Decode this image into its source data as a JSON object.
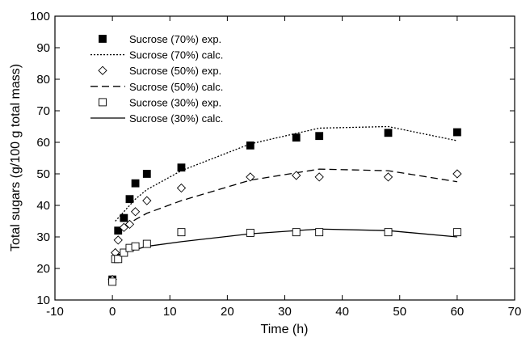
{
  "chart_data": {
    "type": "scatter",
    "title": "",
    "xlabel": "Time (h)",
    "ylabel": "Total sugars (g/100 g total mass)",
    "xlim": [
      -10,
      70
    ],
    "ylim": [
      10,
      100
    ],
    "xticks": [
      "-10",
      "0",
      "10",
      "20",
      "30",
      "40",
      "50",
      "60",
      "70"
    ],
    "yticks": [
      "10",
      "20",
      "30",
      "40",
      "50",
      "60",
      "70",
      "80",
      "90",
      "100"
    ],
    "grid": false,
    "legend_position": "top-left",
    "series": [
      {
        "name": "Sucrose (70%) exp.",
        "kind": "marker",
        "marker": "filled-square",
        "x": [
          0,
          1,
          2,
          3,
          4,
          6,
          12,
          24,
          32,
          36,
          48,
          60
        ],
        "y": [
          16.5,
          32,
          36,
          42,
          47,
          50,
          52,
          59,
          61.5,
          62,
          63,
          63.2
        ]
      },
      {
        "name": "Sucrose (70%) calc.",
        "kind": "line",
        "dash": "dotted",
        "x": [
          0.5,
          2,
          4,
          6,
          12,
          24,
          36,
          48,
          60
        ],
        "y": [
          35,
          38,
          42,
          45,
          51,
          59.5,
          64.5,
          65,
          60.5
        ]
      },
      {
        "name": "Sucrose (50%) exp.",
        "kind": "marker",
        "marker": "open-diamond",
        "x": [
          0,
          0.5,
          1,
          2,
          3,
          4,
          6,
          12,
          24,
          32,
          36,
          48,
          60
        ],
        "y": [
          16.5,
          25,
          29,
          33,
          34,
          38,
          41.5,
          45.5,
          49,
          49.5,
          49,
          49,
          50
        ]
      },
      {
        "name": "Sucrose (50%) calc.",
        "kind": "line",
        "dash": "dashed",
        "x": [
          0.5,
          2,
          4,
          6,
          12,
          24,
          36,
          48,
          60
        ],
        "y": [
          31,
          33,
          35.5,
          37.5,
          41.5,
          48,
          51.5,
          51,
          47.5
        ]
      },
      {
        "name": "Sucrose (30%) exp.",
        "kind": "marker",
        "marker": "open-square",
        "x": [
          0,
          0.5,
          1,
          2,
          3,
          4,
          6,
          12,
          24,
          32,
          36,
          48,
          60
        ],
        "y": [
          15.8,
          23,
          23,
          25,
          26.5,
          27,
          27.8,
          31.5,
          31.3,
          31.5,
          31.5,
          31.5,
          31.5
        ]
      },
      {
        "name": "Sucrose (30%) calc.",
        "kind": "line",
        "dash": "solid",
        "x": [
          0.5,
          2,
          4,
          6,
          12,
          24,
          36,
          48,
          60
        ],
        "y": [
          24,
          25,
          26,
          27,
          28.5,
          31,
          32.5,
          32,
          30
        ]
      }
    ]
  }
}
